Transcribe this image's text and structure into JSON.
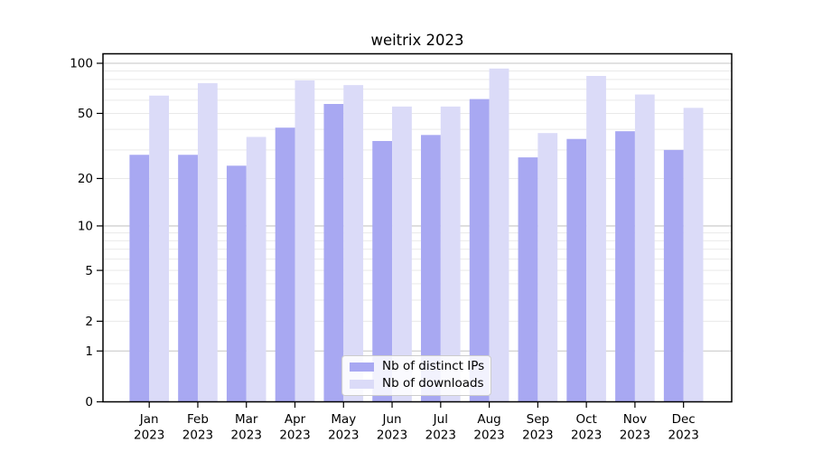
{
  "chart_data": {
    "type": "bar",
    "title": "weitrix 2023",
    "categories": [
      "Jan 2023",
      "Feb 2023",
      "Mar 2023",
      "Apr 2023",
      "May 2023",
      "Jun 2023",
      "Jul 2023",
      "Aug 2023",
      "Sep 2023",
      "Oct 2023",
      "Nov 2023",
      "Dec 2023"
    ],
    "series": [
      {
        "name": "Nb of distinct IPs",
        "color": "#a8a8f2",
        "values": [
          28,
          28,
          24,
          41,
          57,
          34,
          37,
          61,
          27,
          35,
          39,
          30
        ]
      },
      {
        "name": "Nb of downloads",
        "color": "#dbdbf8",
        "values": [
          64,
          76,
          36,
          79,
          74,
          55,
          55,
          93,
          38,
          84,
          65,
          54
        ]
      }
    ],
    "yscale": "log10(1+x)",
    "yticks": [
      0,
      1,
      2,
      5,
      10,
      20,
      50,
      100
    ],
    "ylim": [
      0,
      113
    ],
    "xlabel": "",
    "ylabel": "",
    "grid": {
      "major_values": [
        1,
        10,
        100
      ],
      "minor_values": [
        2,
        3,
        4,
        5,
        6,
        7,
        8,
        9,
        20,
        30,
        40,
        50,
        60,
        70,
        80,
        90
      ],
      "major_color": "#c6c6c6",
      "minor_color": "#e9e9e9"
    },
    "legend_position": "inside-bottom-center",
    "axis_color": "#000000",
    "background": "#ffffff"
  }
}
